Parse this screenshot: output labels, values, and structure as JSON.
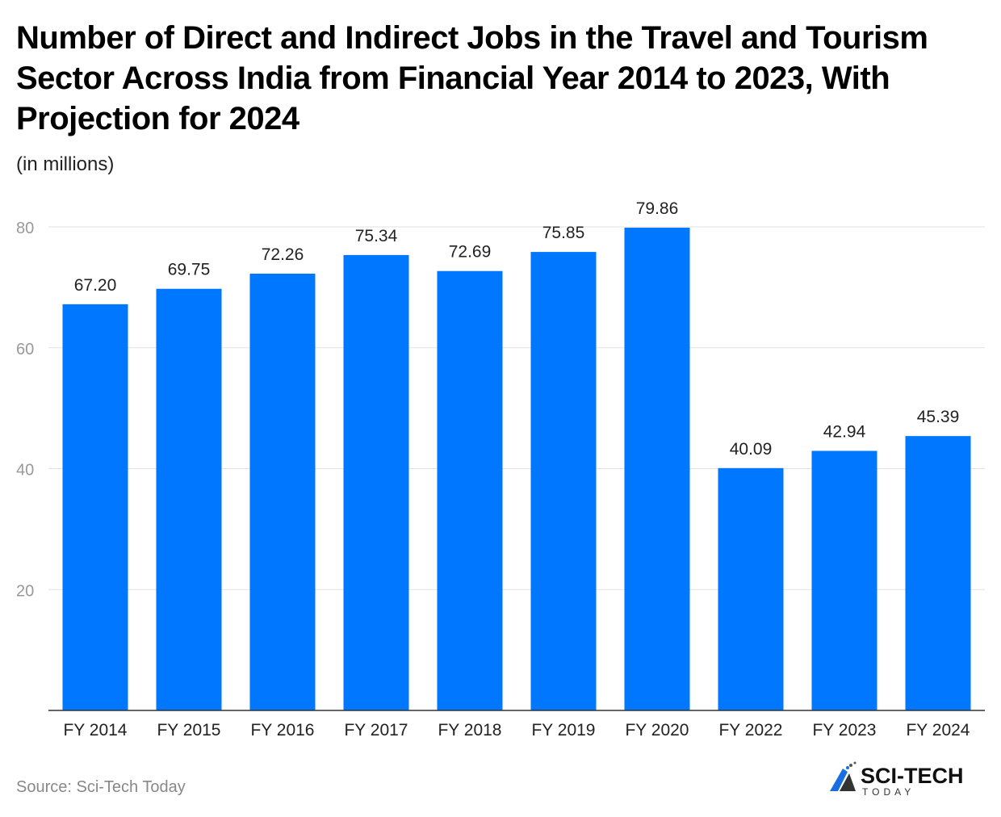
{
  "chart_data": {
    "type": "bar",
    "title": "Number of Direct and Indirect Jobs in the Travel and Tourism Sector Across India from Financial Year 2014 to 2023, With Projection for 2024",
    "subtitle": "(in millions)",
    "categories": [
      "FY 2014",
      "FY 2015",
      "FY 2016",
      "FY 2017",
      "FY 2018",
      "FY 2019",
      "FY 2020",
      "FY 2022",
      "FY 2023",
      "FY 2024"
    ],
    "values": [
      67.2,
      69.75,
      72.26,
      75.34,
      72.69,
      75.85,
      79.86,
      40.09,
      42.94,
      45.39
    ],
    "value_labels": [
      "67.20",
      "69.75",
      "72.26",
      "75.34",
      "72.69",
      "75.85",
      "79.86",
      "40.09",
      "42.94",
      "45.39"
    ],
    "ylim": [
      0,
      80
    ],
    "yticks": [
      20,
      40,
      60,
      80
    ],
    "grid": true,
    "bar_color": "#0077ff",
    "source": "Source: Sci-Tech Today"
  },
  "logo": {
    "name": "SCI-TECH",
    "tagline": "TODAY"
  }
}
